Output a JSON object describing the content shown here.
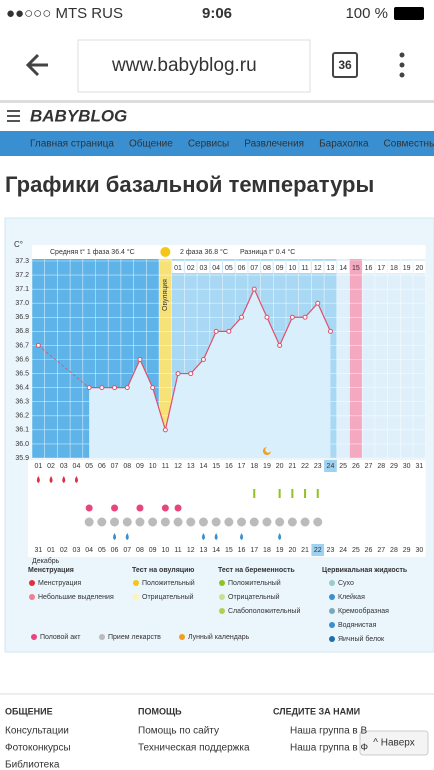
{
  "status_bar": {
    "carrier": "●●○○○ MTS RUS",
    "time": "9:06",
    "battery": "100 %"
  },
  "browser": {
    "url": "www.babyblog.ru",
    "tabs": "36"
  },
  "site": {
    "logo": "BABYBLOG",
    "nav": [
      "Главная страница",
      "Общение",
      "Сервисы",
      "Развлечения",
      "Барахолка",
      "Совместны"
    ]
  },
  "page_title": "Графики базальной температуры",
  "chart_data": {
    "type": "line",
    "y_label": "C°",
    "phase1_label": "Средняя t° 1 фаза 36.4 °C",
    "phase2_label": "2 фаза 36.8 °C",
    "diff_label": "Разница t° 0.4 °C",
    "ovulation_label": "Овуляция",
    "month_label": "Декабрь",
    "x": [
      "01",
      "02",
      "03",
      "04",
      "05",
      "06",
      "07",
      "08",
      "09",
      "10",
      "11",
      "12",
      "13",
      "14",
      "15",
      "16",
      "17",
      "18",
      "19",
      "20",
      "21",
      "22",
      "23",
      "24",
      "25",
      "26",
      "27",
      "28",
      "29",
      "30",
      "31"
    ],
    "dates": [
      "31",
      "01",
      "02",
      "03",
      "04",
      "05",
      "06",
      "07",
      "08",
      "09",
      "10",
      "11",
      "12",
      "13",
      "14",
      "15",
      "16",
      "17",
      "18",
      "19",
      "20",
      "21",
      "22",
      "23",
      "24",
      "25",
      "26",
      "27",
      "28",
      "29",
      "30"
    ],
    "post_ovulation_days": [
      "01",
      "02",
      "03",
      "04",
      "05",
      "06",
      "07",
      "08",
      "09",
      "10",
      "11",
      "12",
      "13",
      "14",
      "15",
      "16",
      "17",
      "18",
      "19",
      "20"
    ],
    "ovulation_day": "11",
    "current_day": "24",
    "highlight_day": "26",
    "series": [
      {
        "color": "#e0506a",
        "values": [
          36.7,
          null,
          null,
          null,
          36.4,
          36.4,
          36.4,
          36.4,
          36.6,
          36.4,
          36.1,
          36.5,
          36.5,
          36.6,
          36.8,
          36.8,
          36.9,
          37.1,
          36.9,
          36.7,
          36.9,
          36.9,
          37.0,
          36.8,
          null,
          null,
          null,
          null,
          null,
          null,
          null
        ]
      }
    ],
    "ylim": [
      35.9,
      37.3
    ],
    "yticks": [
      35.9,
      {
        "value": 36,
        "label": "36.0"
      },
      36.1,
      36.2,
      36.3,
      36.4,
      36.5,
      36.6,
      36.7,
      36.8,
      36.9,
      {
        "value": 37,
        "label": "37.0"
      },
      37.1,
      37.2,
      37.3
    ],
    "menstruation_days": [
      "01",
      "02",
      "03",
      "04"
    ],
    "pregnancy_test_days": [
      "18",
      "20",
      "21",
      "22",
      "23"
    ],
    "intercourse_days": [
      "05",
      "07",
      "09",
      "11",
      "12"
    ],
    "medicine_days": [
      "05",
      "06",
      "07",
      "08",
      "09",
      "10",
      "11",
      "12",
      "13",
      "14",
      "15",
      "16",
      "17",
      "18",
      "19",
      "20",
      "21",
      "22",
      "23"
    ],
    "cervical_days": [
      "07",
      "08",
      "14",
      "15",
      "17",
      "20"
    ],
    "moon_day": "19",
    "legend": {
      "menstruation": "Менструация",
      "spotting": "Небольшие выделения",
      "ovulation_test": "Тест на овуляцию",
      "ovulation_positive": "Положительный",
      "ovulation_negative": "Отрицательный",
      "pregnancy_test": "Тест на беременность",
      "pregnancy_positive": "Положительный",
      "pregnancy_negative": "Отрицательный",
      "pregnancy_weak": "Слабоположительный",
      "cervical": "Цервикальная жидкость",
      "dry": "Сухо",
      "sticky": "Клейкая",
      "creamy": "Кремообразная",
      "watery": "Водянистая",
      "eggwhite": "Яичный белок",
      "intercourse": "Половой акт",
      "medicine": "Прием лекарств",
      "moon": "Лунный календарь"
    }
  },
  "footer": {
    "col1": {
      "title": "ОБЩЕНИЕ",
      "links": [
        "Консультации",
        "Фотоконкурсы",
        "Библиотека"
      ]
    },
    "col2": {
      "title": "ПОМОЩЬ",
      "links": [
        "Помощь по сайту",
        "Техническая поддержка"
      ]
    },
    "col3": {
      "title": "СЛЕДИТЕ ЗА НАМИ",
      "links": [
        "Наша группа в В",
        "Наша группа в Ф"
      ]
    },
    "top": "^ Наверх"
  }
}
